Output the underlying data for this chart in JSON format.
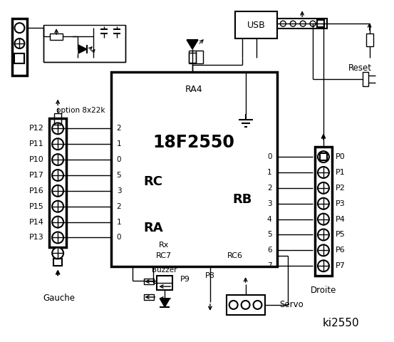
{
  "bg_color": "#ffffff",
  "title": "ki2550",
  "chip_label": "18F2550",
  "chip_sub": "RA4",
  "left_connector_labels": [
    "P12",
    "P11",
    "P10",
    "P17",
    "P16",
    "P15",
    "P14",
    "P13"
  ],
  "right_connector_labels": [
    "P0",
    "P1",
    "P2",
    "P3",
    "P4",
    "P5",
    "P6",
    "P7"
  ],
  "rc_pins": [
    "2",
    "1",
    "0",
    "5",
    "3",
    "2",
    "1",
    "0"
  ],
  "rb_pins": [
    "0",
    "1",
    "2",
    "3",
    "4",
    "5",
    "6",
    "7"
  ],
  "left_label": "Gauche",
  "right_label": "Droite",
  "rc_label": "RC",
  "ra_label": "RA",
  "rb_label": "RB",
  "option_label": "option 8x22k",
  "reset_label": "Reset",
  "usb_label": "USB",
  "buzzer_label": "Buzzer",
  "servo_label": "Servo",
  "p8_label": "P8",
  "p9_label": "P9",
  "rx_label": "Rx",
  "rc7_label": "RC7",
  "rc6_label": "RC6",
  "figw": 5.53,
  "figh": 4.8,
  "dpi": 100
}
